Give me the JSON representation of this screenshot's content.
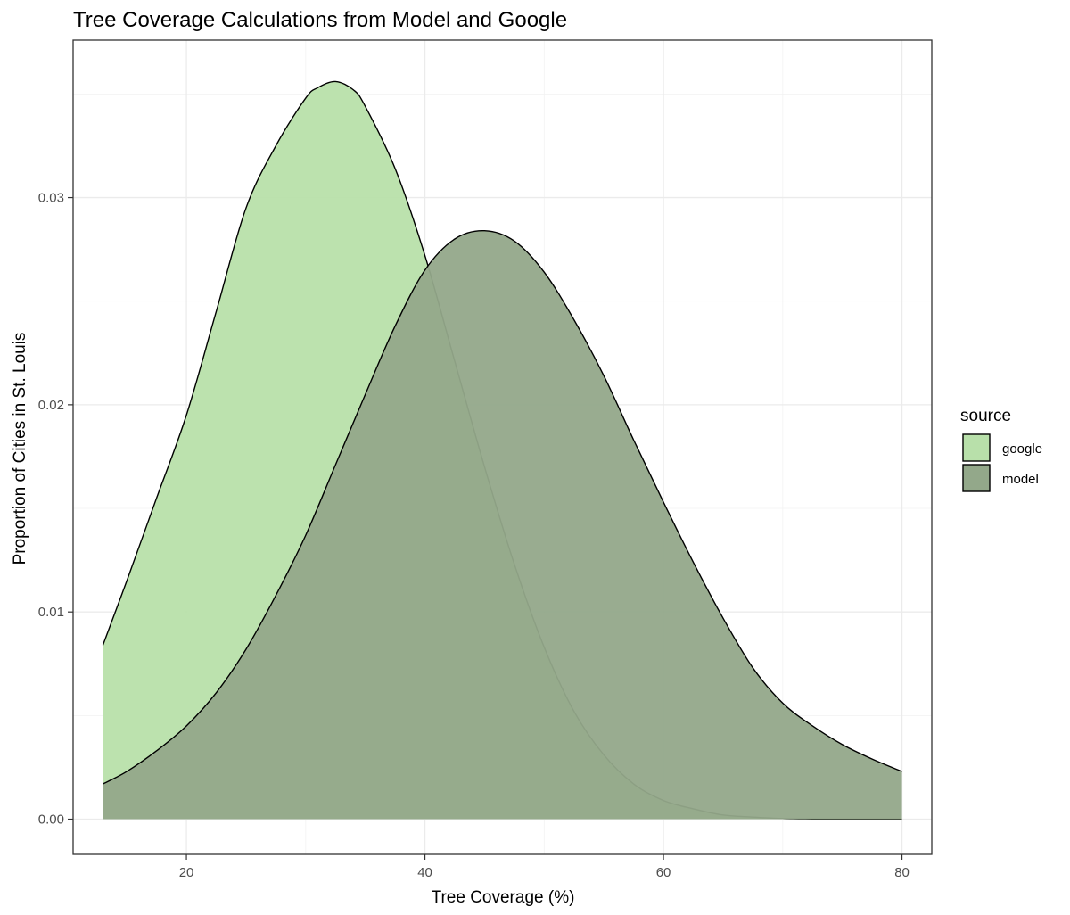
{
  "chart_data": {
    "type": "area",
    "title": "Tree Coverage Calculations from Model and Google",
    "xlabel": "Tree Coverage (%)",
    "ylabel": "Proportion of Cities in St. Louis",
    "xlim": [
      10.5,
      82.5
    ],
    "ylim": [
      -0.0017,
      0.0376
    ],
    "x_ticks": [
      20,
      40,
      60,
      80
    ],
    "x_tick_labels": [
      "20",
      "40",
      "60",
      "80"
    ],
    "y_ticks": [
      0.0,
      0.01,
      0.02,
      0.03
    ],
    "y_tick_labels": [
      "0.00",
      "0.01",
      "0.02",
      "0.03"
    ],
    "grid": true,
    "legend": {
      "title": "source",
      "position": "right"
    },
    "series": [
      {
        "name": "google",
        "color": "#b8e0aa",
        "x": [
          13,
          15,
          17.5,
          20,
          22.5,
          25,
          27.5,
          30,
          31,
          32.5,
          34,
          35,
          37.5,
          40,
          42.5,
          45,
          47.5,
          50,
          52.5,
          55,
          57.5,
          60,
          62.5,
          65,
          67.5,
          70,
          72.5,
          75,
          77.5,
          80
        ],
        "y": [
          0.0084,
          0.0115,
          0.0155,
          0.0195,
          0.0245,
          0.0295,
          0.0325,
          0.0348,
          0.0353,
          0.0356,
          0.0352,
          0.0344,
          0.0314,
          0.0272,
          0.0221,
          0.017,
          0.0123,
          0.0083,
          0.0052,
          0.0031,
          0.0017,
          0.0009,
          0.0005,
          0.0002,
          0.0001,
          3e-05,
          1e-05,
          0.0,
          0.0,
          0.0
        ]
      },
      {
        "name": "model",
        "color": "#93a88a",
        "x": [
          13,
          15,
          17.5,
          20,
          22.5,
          25,
          27.5,
          30,
          32.5,
          35,
          37.5,
          40,
          42.5,
          45,
          47.5,
          50,
          52.5,
          55,
          57.5,
          60,
          62.5,
          65,
          67.5,
          70,
          72.5,
          75,
          77.5,
          80
        ],
        "y": [
          0.0017,
          0.0023,
          0.0033,
          0.0045,
          0.0061,
          0.0082,
          0.0108,
          0.0137,
          0.0171,
          0.0205,
          0.0238,
          0.0265,
          0.028,
          0.0284,
          0.0279,
          0.0264,
          0.0241,
          0.0214,
          0.0183,
          0.0153,
          0.0124,
          0.0097,
          0.0073,
          0.0056,
          0.0045,
          0.0036,
          0.0029,
          0.0023
        ]
      }
    ]
  }
}
